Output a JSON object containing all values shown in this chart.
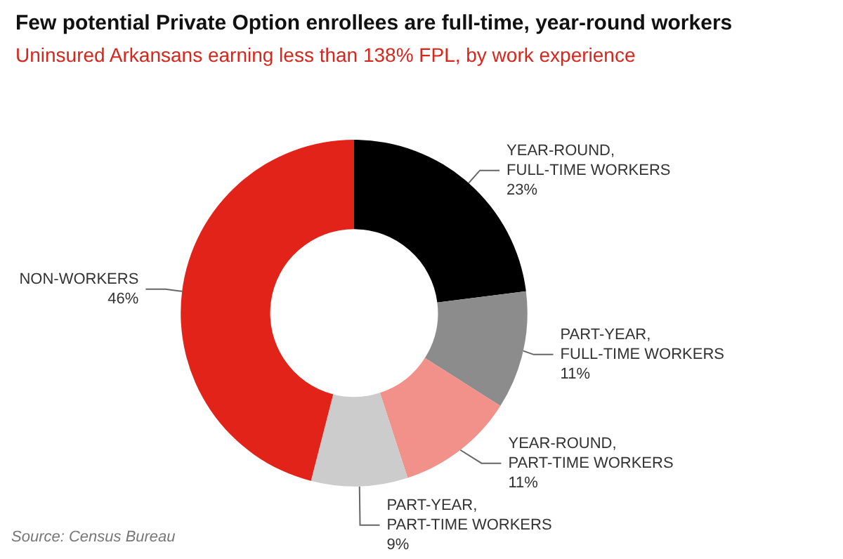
{
  "chart_data": {
    "type": "donut",
    "title": "Few potential Private Option enrollees are full-time, year-round workers",
    "subtitle": "Uninsured Arkansans earning less than 138% FPL, by work experience",
    "categories": [
      "YEAR-ROUND, FULL-TIME WORKERS",
      "PART-YEAR, FULL-TIME WORKERS",
      "YEAR-ROUND, PART-TIME WORKERS",
      "PART-YEAR, PART-TIME WORKERS",
      "NON-WORKERS"
    ],
    "values": [
      23,
      11,
      11,
      9,
      46
    ],
    "value_labels": [
      "23%",
      "11%",
      "11%",
      "9%",
      "46%"
    ],
    "colors": [
      "#000000",
      "#8c8c8c",
      "#f2908a",
      "#cccccc",
      "#e2231a"
    ],
    "annotations": [
      "Source: Census Bureau"
    ],
    "legend": false
  }
}
